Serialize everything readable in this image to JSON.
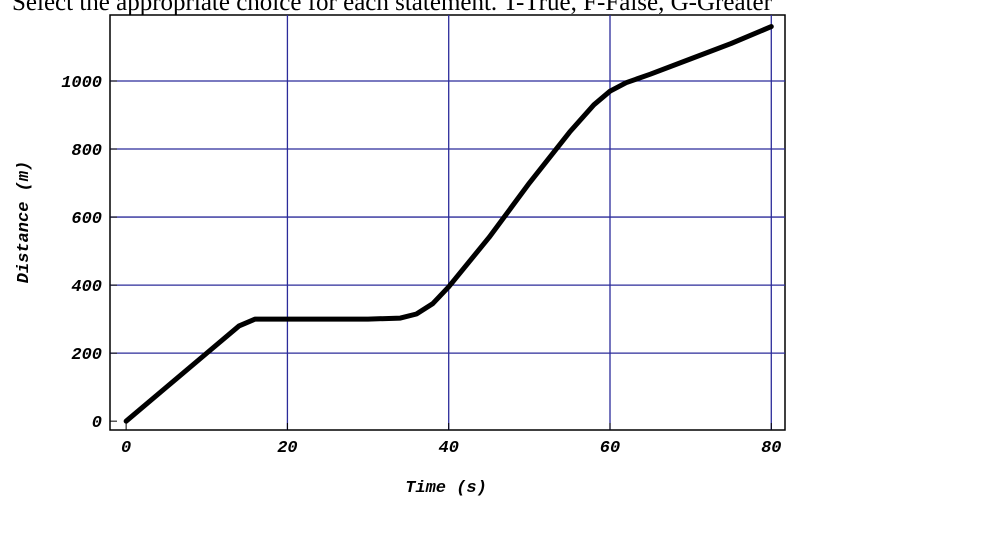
{
  "note": "Select the appropriate choice for each statement. T-True, F-False, G-Greater",
  "chart_data": {
    "type": "line",
    "x_label": "Time (s)",
    "y_label": "Distance (m)",
    "x": [
      0,
      5,
      10,
      14,
      16,
      20,
      30,
      34,
      36,
      38,
      40,
      45,
      50,
      55,
      58,
      60,
      62,
      65,
      70,
      75,
      80
    ],
    "series": [
      {
        "name": "Distance",
        "color": "#000000",
        "values": [
          0,
          100,
          200,
          280,
          300,
          300,
          300,
          303,
          315,
          345,
          395,
          540,
          700,
          850,
          930,
          970,
          995,
          1020,
          1065,
          1110,
          1160
        ]
      }
    ],
    "xlim": [
      -2,
      81.7
    ],
    "ylim": [
      -26,
      1194
    ],
    "xticks": [
      0,
      20,
      40,
      60,
      80
    ],
    "yticks": [
      0,
      200,
      400,
      600,
      800,
      1000
    ],
    "grid": true,
    "grid_color": "#2b2b9a"
  }
}
